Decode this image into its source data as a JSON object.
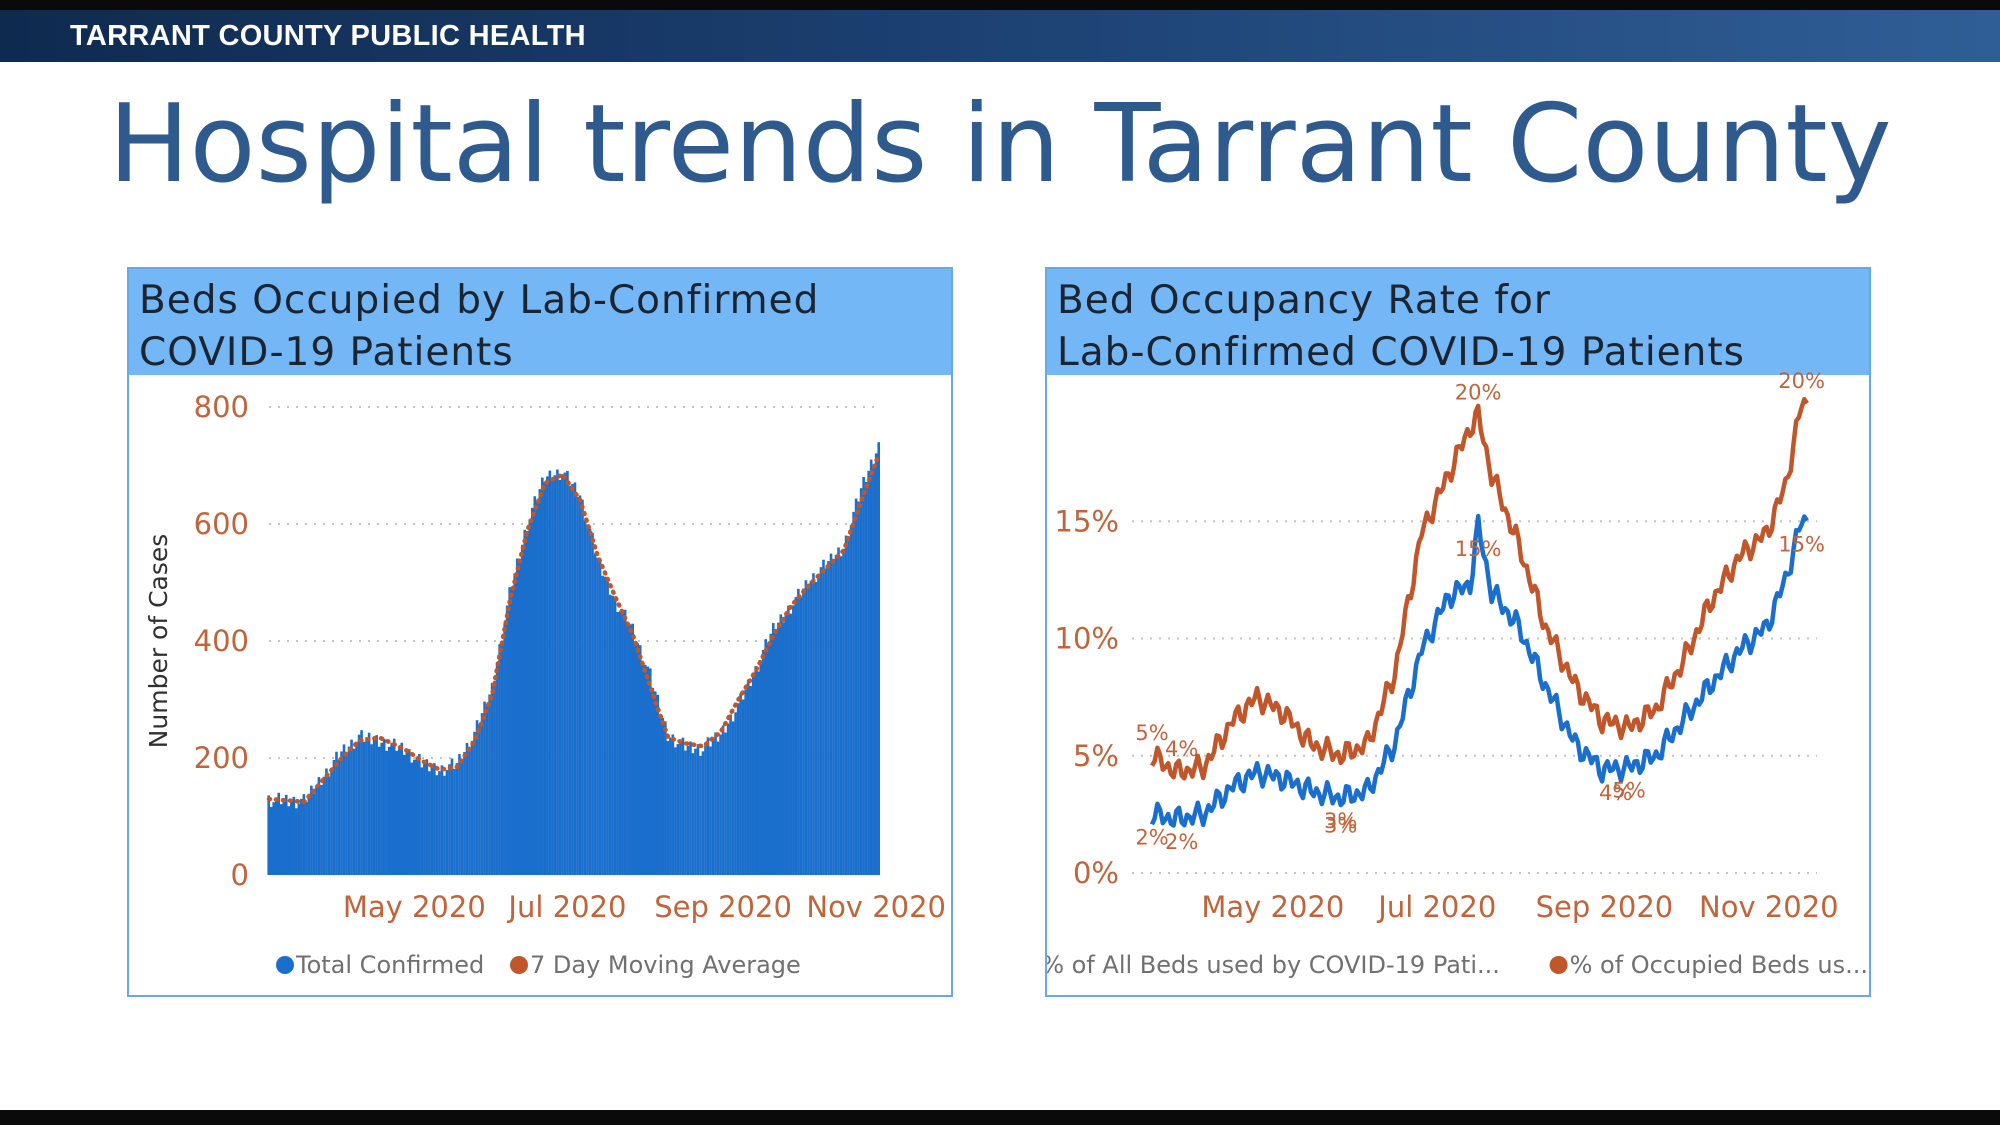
{
  "header": {
    "org_name": "TARRANT COUNTY PUBLIC HEALTH"
  },
  "page_title": "Hospital trends in Tarrant County",
  "colors": {
    "bar_blue": "#1a6fcd",
    "orange": "#c0562a",
    "header_blue": "#74b7f7",
    "title_blue": "#2e5a8e"
  },
  "chart_data": [
    {
      "type": "bar",
      "title": "Beds Occupied by Lab-Confirmed COVID-19 Patients",
      "title_lines": [
        "Beds Occupied by Lab-Confirmed",
        "COVID-19 Patients"
      ],
      "xlabel": "",
      "ylabel": "Number of Cases",
      "ylim": [
        0,
        800
      ],
      "yticks": [
        "0",
        "200",
        "400",
        "600",
        "800"
      ],
      "xticks": [
        "May 2020",
        "Jul 2020",
        "Sep 2020",
        "Nov 2020"
      ],
      "x_range": [
        "2020-04-01",
        "2020-11-30"
      ],
      "grid": true,
      "legend_position": "bottom",
      "legend": [
        "Total Confirmed",
        "7 Day Moving Average"
      ],
      "series": [
        {
          "name": "Total Confirmed",
          "chart_type": "bar",
          "color": "#1a6fcd",
          "points": [
            [
              "2020-04-01",
              130
            ],
            [
              "2020-04-15",
              125
            ],
            [
              "2020-04-30",
              210
            ],
            [
              "2020-05-07",
              235
            ],
            [
              "2020-05-15",
              230
            ],
            [
              "2020-05-25",
              215
            ],
            [
              "2020-06-01",
              190
            ],
            [
              "2020-06-08",
              180
            ],
            [
              "2020-06-15",
              190
            ],
            [
              "2020-06-22",
              240
            ],
            [
              "2020-06-29",
              320
            ],
            [
              "2020-07-06",
              480
            ],
            [
              "2020-07-13",
              600
            ],
            [
              "2020-07-20",
              680
            ],
            [
              "2020-07-27",
              690
            ],
            [
              "2020-08-03",
              650
            ],
            [
              "2020-08-10",
              540
            ],
            [
              "2020-08-17",
              470
            ],
            [
              "2020-08-24",
              420
            ],
            [
              "2020-08-31",
              340
            ],
            [
              "2020-09-07",
              240
            ],
            [
              "2020-09-14",
              220
            ],
            [
              "2020-09-21",
              215
            ],
            [
              "2020-09-28",
              240
            ],
            [
              "2020-10-05",
              290
            ],
            [
              "2020-10-12",
              350
            ],
            [
              "2020-10-19",
              420
            ],
            [
              "2020-10-26",
              460
            ],
            [
              "2020-11-02",
              500
            ],
            [
              "2020-11-09",
              530
            ],
            [
              "2020-11-16",
              560
            ],
            [
              "2020-11-23",
              660
            ],
            [
              "2020-11-30",
              735
            ]
          ]
        },
        {
          "name": "7 Day Moving Average",
          "chart_type": "dotted-line",
          "color": "#c0562a",
          "points": [
            [
              "2020-04-01",
              130
            ],
            [
              "2020-04-15",
              125
            ],
            [
              "2020-04-30",
              200
            ],
            [
              "2020-05-07",
              230
            ],
            [
              "2020-05-15",
              235
            ],
            [
              "2020-05-25",
              215
            ],
            [
              "2020-06-01",
              195
            ],
            [
              "2020-06-08",
              180
            ],
            [
              "2020-06-15",
              185
            ],
            [
              "2020-06-22",
              230
            ],
            [
              "2020-06-29",
              310
            ],
            [
              "2020-07-06",
              470
            ],
            [
              "2020-07-13",
              590
            ],
            [
              "2020-07-20",
              670
            ],
            [
              "2020-07-27",
              685
            ],
            [
              "2020-08-03",
              640
            ],
            [
              "2020-08-10",
              545
            ],
            [
              "2020-08-17",
              475
            ],
            [
              "2020-08-24",
              410
            ],
            [
              "2020-08-31",
              320
            ],
            [
              "2020-09-07",
              235
            ],
            [
              "2020-09-14",
              225
            ],
            [
              "2020-09-21",
              220
            ],
            [
              "2020-09-28",
              245
            ],
            [
              "2020-10-05",
              300
            ],
            [
              "2020-10-12",
              350
            ],
            [
              "2020-10-19",
              410
            ],
            [
              "2020-10-26",
              460
            ],
            [
              "2020-11-02",
              495
            ],
            [
              "2020-11-09",
              525
            ],
            [
              "2020-11-16",
              555
            ],
            [
              "2020-11-23",
              640
            ],
            [
              "2020-11-30",
              720
            ]
          ]
        }
      ]
    },
    {
      "type": "line",
      "title": "Bed Occupancy Rate for Lab-Confirmed COVID-19 Patients",
      "title_lines": [
        "Bed Occupancy Rate for",
        "Lab-Confirmed COVID-19 Patients"
      ],
      "xlabel": "",
      "ylabel": "",
      "ylim": [
        0,
        20
      ],
      "yticks": [
        "0%",
        "5%",
        "10%",
        "15%"
      ],
      "xticks": [
        "May 2020",
        "Jul 2020",
        "Sep 2020",
        "Nov 2020"
      ],
      "x_range": [
        "2020-04-01",
        "2020-11-30"
      ],
      "grid": true,
      "legend_position": "bottom",
      "legend": [
        "% of All Beds used by COVID-19 Pati...",
        "% of Occupied Beds us..."
      ],
      "series": [
        {
          "name": "% of All Beds used by COVID-19 Pati...",
          "color": "#1a6fcd",
          "points": [
            [
              "2020-04-01",
              2.5
            ],
            [
              "2020-04-10",
              2.3
            ],
            [
              "2020-04-20",
              2.5
            ],
            [
              "2020-05-01",
              3.7
            ],
            [
              "2020-05-10",
              4.3
            ],
            [
              "2020-05-20",
              4.0
            ],
            [
              "2020-05-30",
              3.5
            ],
            [
              "2020-06-10",
              3.2
            ],
            [
              "2020-06-20",
              3.5
            ],
            [
              "2020-06-30",
              5.5
            ],
            [
              "2020-07-10",
              9.5
            ],
            [
              "2020-07-20",
              11.8
            ],
            [
              "2020-07-28",
              12.3
            ],
            [
              "2020-07-31",
              14.8
            ],
            [
              "2020-08-05",
              12.0
            ],
            [
              "2020-08-15",
              10.5
            ],
            [
              "2020-08-25",
              8.0
            ],
            [
              "2020-09-05",
              5.5
            ],
            [
              "2020-09-15",
              4.4
            ],
            [
              "2020-09-25",
              4.5
            ],
            [
              "2020-10-05",
              5.0
            ],
            [
              "2020-10-15",
              6.5
            ],
            [
              "2020-10-25",
              8.0
            ],
            [
              "2020-11-05",
              9.5
            ],
            [
              "2020-11-15",
              10.5
            ],
            [
              "2020-11-22",
              12.5
            ],
            [
              "2020-11-28",
              15.0
            ]
          ]
        },
        {
          "name": "% of Occupied Beds us...",
          "color": "#c0562a",
          "points": [
            [
              "2020-04-01",
              5.0
            ],
            [
              "2020-04-10",
              4.3
            ],
            [
              "2020-04-20",
              4.5
            ],
            [
              "2020-05-01",
              6.5
            ],
            [
              "2020-05-10",
              7.5
            ],
            [
              "2020-05-20",
              6.8
            ],
            [
              "2020-05-30",
              5.5
            ],
            [
              "2020-06-10",
              5.0
            ],
            [
              "2020-06-20",
              5.5
            ],
            [
              "2020-06-30",
              8.5
            ],
            [
              "2020-07-10",
              14.5
            ],
            [
              "2020-07-20",
              17.0
            ],
            [
              "2020-07-28",
              19.0
            ],
            [
              "2020-07-31",
              19.5
            ],
            [
              "2020-08-05",
              17.0
            ],
            [
              "2020-08-15",
              14.0
            ],
            [
              "2020-08-25",
              10.5
            ],
            [
              "2020-09-05",
              8.0
            ],
            [
              "2020-09-15",
              6.5
            ],
            [
              "2020-09-25",
              6.2
            ],
            [
              "2020-10-05",
              7.0
            ],
            [
              "2020-10-15",
              9.0
            ],
            [
              "2020-10-25",
              11.5
            ],
            [
              "2020-11-05",
              13.5
            ],
            [
              "2020-11-15",
              14.5
            ],
            [
              "2020-11-22",
              16.5
            ],
            [
              "2020-11-28",
              20.0
            ]
          ]
        }
      ],
      "data_labels": [
        {
          "text": "5%",
          "series": 1,
          "x": "2020-04-01",
          "y": 5.0
        },
        {
          "text": "2%",
          "series": 0,
          "x": "2020-04-01",
          "y": 2.5
        },
        {
          "text": "4%",
          "series": 1,
          "x": "2020-04-12",
          "y": 4.3
        },
        {
          "text": "2%",
          "series": 0,
          "x": "2020-04-12",
          "y": 2.3
        },
        {
          "text": "3%",
          "series": 0,
          "x": "2020-06-10",
          "y": 3.2
        },
        {
          "text": "3%",
          "series": 0,
          "x": "2020-06-10",
          "y": 3.0
        },
        {
          "text": "20%",
          "series": 1,
          "x": "2020-07-31",
          "y": 19.5
        },
        {
          "text": "15%",
          "series": 0,
          "x": "2020-07-31",
          "y": 14.8
        },
        {
          "text": "5%",
          "series": 0,
          "x": "2020-09-25",
          "y": 4.5
        },
        {
          "text": "4%",
          "series": 0,
          "x": "2020-09-20",
          "y": 4.4
        },
        {
          "text": "20%",
          "series": 1,
          "x": "2020-11-28",
          "y": 20.0
        },
        {
          "text": "15%",
          "series": 0,
          "x": "2020-11-28",
          "y": 15.0
        }
      ]
    }
  ]
}
